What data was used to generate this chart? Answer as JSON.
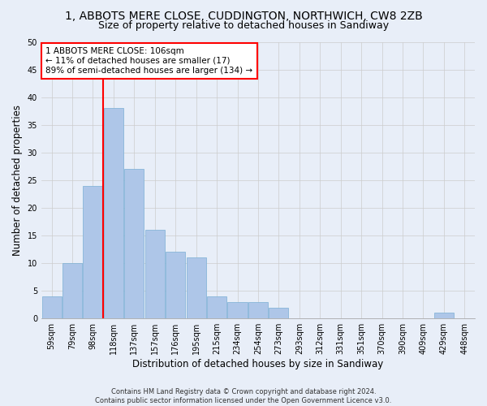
{
  "title": "1, ABBOTS MERE CLOSE, CUDDINGTON, NORTHWICH, CW8 2ZB",
  "subtitle": "Size of property relative to detached houses in Sandiway",
  "xlabel": "Distribution of detached houses by size in Sandiway",
  "ylabel": "Number of detached properties",
  "bar_labels": [
    "59sqm",
    "79sqm",
    "98sqm",
    "118sqm",
    "137sqm",
    "157sqm",
    "176sqm",
    "195sqm",
    "215sqm",
    "234sqm",
    "254sqm",
    "273sqm",
    "293sqm",
    "312sqm",
    "331sqm",
    "351sqm",
    "370sqm",
    "390sqm",
    "409sqm",
    "429sqm",
    "448sqm"
  ],
  "bar_values": [
    4,
    10,
    24,
    38,
    27,
    16,
    12,
    11,
    4,
    3,
    3,
    2,
    0,
    0,
    0,
    0,
    0,
    0,
    0,
    1,
    0
  ],
  "bar_color": "#aec6e8",
  "bar_edgecolor": "#7aafd4",
  "vline_x": 2.5,
  "vline_color": "red",
  "annotation_text": "1 ABBOTS MERE CLOSE: 106sqm\n← 11% of detached houses are smaller (17)\n89% of semi-detached houses are larger (134) →",
  "annotation_box_color": "#ffffff",
  "annotation_box_edgecolor": "red",
  "ylim": [
    0,
    50
  ],
  "yticks": [
    0,
    5,
    10,
    15,
    20,
    25,
    30,
    35,
    40,
    45,
    50
  ],
  "grid_color": "#cccccc",
  "background_color": "#e8eef8",
  "footer_line1": "Contains HM Land Registry data © Crown copyright and database right 2024.",
  "footer_line2": "Contains public sector information licensed under the Open Government Licence v3.0.",
  "title_fontsize": 10,
  "subtitle_fontsize": 9,
  "tick_fontsize": 7,
  "ylabel_fontsize": 8.5,
  "xlabel_fontsize": 8.5,
  "annotation_fontsize": 7.5
}
